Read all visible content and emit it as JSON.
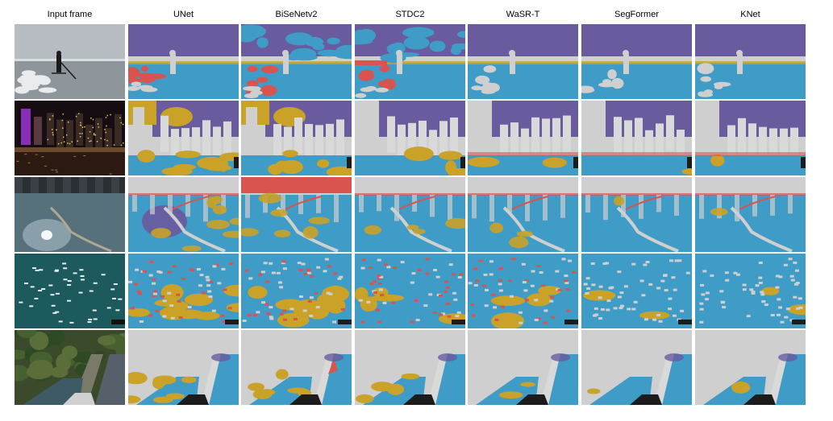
{
  "figure": {
    "columns": [
      {
        "label": "Input frame",
        "kind": "input"
      },
      {
        "label": "UNet",
        "kind": "seg"
      },
      {
        "label": "BiSeNetv2",
        "kind": "seg"
      },
      {
        "label": "STDC2",
        "kind": "seg"
      },
      {
        "label": "WaSR-T",
        "kind": "seg"
      },
      {
        "label": "SegFormer",
        "kind": "seg"
      },
      {
        "label": "KNet",
        "kind": "seg"
      }
    ],
    "rows": [
      {
        "scene": "paddleboarder-at-sea"
      },
      {
        "scene": "city-harbour-night"
      },
      {
        "scene": "boom-reflection"
      },
      {
        "scene": "marina-many-boats"
      },
      {
        "scene": "forest-canal-bow"
      }
    ],
    "colors": {
      "sky": "#6a5a9e",
      "water": "#3e9cc6",
      "obstacle": "#cfcfcf",
      "static_obstacle": "#d9d9d9",
      "dynamic_obstacle": "#d9534f",
      "unknown": "#c9a227",
      "dark_panel": "#1c1c1c"
    }
  }
}
